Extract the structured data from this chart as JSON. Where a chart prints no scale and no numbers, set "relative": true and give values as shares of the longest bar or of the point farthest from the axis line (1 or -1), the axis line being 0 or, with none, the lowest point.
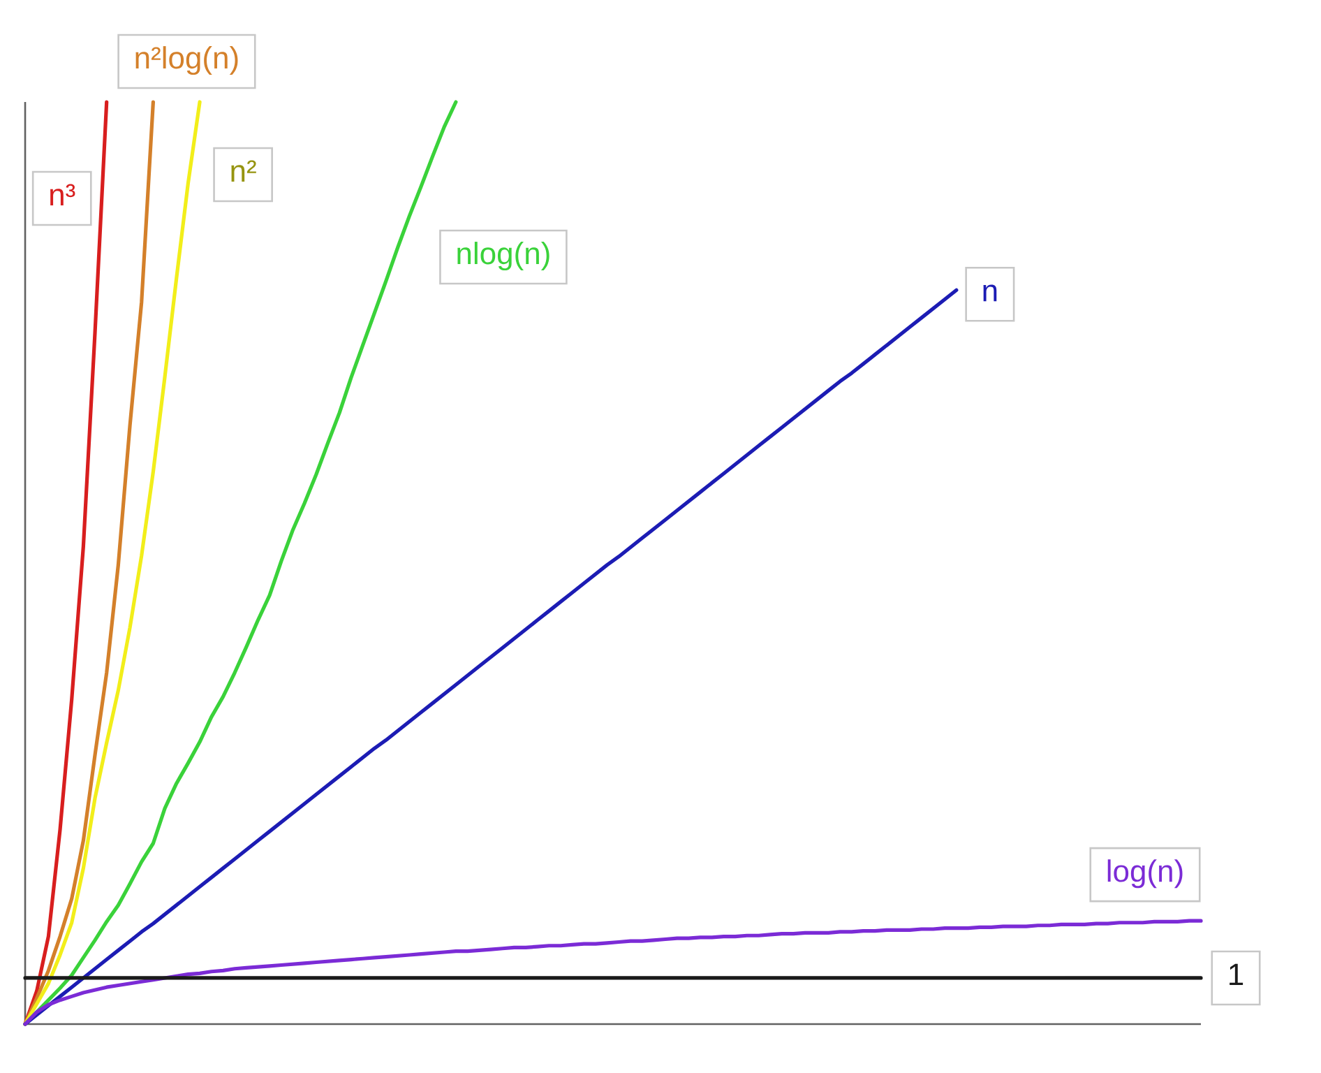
{
  "chart_data": {
    "type": "line",
    "relative": true,
    "line_style": "solid",
    "categories": [
      null,
      null,
      null,
      null,
      null,
      null,
      null,
      null,
      null,
      null,
      null,
      null,
      null,
      null,
      null,
      null,
      null,
      null,
      null,
      null,
      null,
      null,
      null,
      null,
      null,
      null,
      null,
      null,
      null,
      null,
      null,
      null,
      null,
      null,
      null,
      null,
      null,
      null,
      null,
      null,
      null,
      null,
      null,
      null,
      null,
      null,
      null,
      null,
      null,
      null,
      null,
      null,
      null,
      null,
      null,
      null,
      null,
      null,
      null,
      null,
      null,
      null,
      null,
      null,
      null,
      null,
      null,
      null,
      null,
      null,
      null,
      null,
      null,
      null,
      null,
      null,
      null,
      null,
      null,
      null,
      null,
      null,
      null,
      null,
      null,
      null,
      null,
      null,
      null,
      null,
      null,
      null,
      null,
      null,
      null,
      null,
      null,
      null,
      null,
      null,
      null,
      null
    ],
    "series": [
      {
        "name": "n³",
        "color": "#d81e1e",
        "values": [
          0,
          0.036,
          0.095,
          0.211,
          0.352,
          0.518,
          0.75,
          1,
          null,
          null,
          null,
          null,
          null,
          null,
          null,
          null,
          null,
          null,
          null,
          null,
          null,
          null,
          null,
          null,
          null,
          null,
          null,
          null,
          null,
          null,
          null,
          null,
          null,
          null,
          null,
          null,
          null,
          null,
          null,
          null,
          null,
          null,
          null,
          null,
          null,
          null,
          null,
          null,
          null,
          null,
          null,
          null,
          null,
          null,
          null,
          null,
          null,
          null,
          null,
          null,
          null,
          null,
          null,
          null,
          null,
          null,
          null,
          null,
          null,
          null,
          null,
          null,
          null,
          null,
          null,
          null,
          null,
          null,
          null,
          null,
          null,
          null,
          null,
          null,
          null,
          null,
          null,
          null,
          null,
          null,
          null,
          null,
          null,
          null,
          null,
          null,
          null,
          null,
          null,
          null,
          null,
          null
        ]
      },
      {
        "name": "n²log(n)",
        "color": "#d4802a",
        "values": [
          0,
          0.028,
          0.058,
          0.095,
          0.136,
          0.199,
          0.292,
          0.381,
          0.498,
          0.649,
          0.783,
          1,
          null,
          null,
          null,
          null,
          null,
          null,
          null,
          null,
          null,
          null,
          null,
          null,
          null,
          null,
          null,
          null,
          null,
          null,
          null,
          null,
          null,
          null,
          null,
          null,
          null,
          null,
          null,
          null,
          null,
          null,
          null,
          null,
          null,
          null,
          null,
          null,
          null,
          null,
          null,
          null,
          null,
          null,
          null,
          null,
          null,
          null,
          null,
          null,
          null,
          null,
          null,
          null,
          null,
          null,
          null,
          null,
          null,
          null,
          null,
          null,
          null,
          null,
          null,
          null,
          null,
          null,
          null,
          null,
          null,
          null,
          null,
          null,
          null,
          null,
          null,
          null,
          null,
          null,
          null,
          null,
          null,
          null,
          null,
          null,
          null,
          null,
          null,
          null,
          null,
          null
        ]
      },
      {
        "name": "n²",
        "color": "#f2ee1a",
        "values": [
          0,
          0.022,
          0.044,
          0.075,
          0.11,
          0.169,
          0.245,
          0.305,
          0.362,
          0.43,
          0.508,
          0.599,
          0.702,
          0.809,
          0.912,
          1,
          null,
          null,
          null,
          null,
          null,
          null,
          null,
          null,
          null,
          null,
          null,
          null,
          null,
          null,
          null,
          null,
          null,
          null,
          null,
          null,
          null,
          null,
          null,
          null,
          null,
          null,
          null,
          null,
          null,
          null,
          null,
          null,
          null,
          null,
          null,
          null,
          null,
          null,
          null,
          null,
          null,
          null,
          null,
          null,
          null,
          null,
          null,
          null,
          null,
          null,
          null,
          null,
          null,
          null,
          null,
          null,
          null,
          null,
          null,
          null,
          null,
          null,
          null,
          null,
          null,
          null,
          null,
          null,
          null,
          null,
          null,
          null,
          null,
          null,
          null,
          null,
          null,
          null,
          null,
          null,
          null,
          null,
          null,
          null,
          null,
          null
        ]
      },
      {
        "name": "nlog(n)",
        "color": "#3ad23a",
        "values": [
          0,
          0.013,
          0.026,
          0.039,
          0.053,
          0.072,
          0.091,
          0.111,
          0.129,
          0.152,
          0.176,
          0.196,
          0.234,
          0.261,
          0.283,
          0.306,
          0.333,
          0.355,
          0.381,
          0.409,
          0.438,
          0.465,
          0.502,
          0.536,
          0.565,
          0.596,
          0.63,
          0.663,
          0.701,
          0.736,
          0.771,
          0.806,
          0.842,
          0.876,
          0.908,
          0.941,
          0.973,
          1,
          null,
          null,
          null,
          null,
          null,
          null,
          null,
          null,
          null,
          null,
          null,
          null,
          null,
          null,
          null,
          null,
          null,
          null,
          null,
          null,
          null,
          null,
          null,
          null,
          null,
          null,
          null,
          null,
          null,
          null,
          null,
          null,
          null,
          null,
          null,
          null,
          null,
          null,
          null,
          null,
          null,
          null,
          null,
          null,
          null,
          null,
          null,
          null,
          null,
          null,
          null,
          null,
          null,
          null,
          null,
          null,
          null,
          null,
          null,
          null,
          null,
          null,
          null,
          null
        ]
      },
      {
        "name": "n",
        "color": "#1c1cb4",
        "values": [
          0,
          0.01,
          0.02,
          0.03,
          0.04,
          0.05,
          0.06,
          0.07,
          0.08,
          0.09,
          0.1,
          0.109,
          0.119,
          0.129,
          0.139,
          0.149,
          0.159,
          0.169,
          0.179,
          0.189,
          0.199,
          0.209,
          0.219,
          0.229,
          0.239,
          0.249,
          0.259,
          0.269,
          0.279,
          0.289,
          0.299,
          0.308,
          0.318,
          0.328,
          0.338,
          0.348,
          0.358,
          0.368,
          0.378,
          0.388,
          0.398,
          0.408,
          0.418,
          0.428,
          0.438,
          0.448,
          0.458,
          0.468,
          0.478,
          0.488,
          0.498,
          0.507,
          0.517,
          0.527,
          0.537,
          0.547,
          0.557,
          0.567,
          0.577,
          0.587,
          0.597,
          0.607,
          0.617,
          0.627,
          0.637,
          0.647,
          0.657,
          0.667,
          0.677,
          0.687,
          0.697,
          0.706,
          0.716,
          0.726,
          0.736,
          0.746,
          0.756,
          0.766,
          0.776,
          0.786,
          0.796,
          null,
          null,
          null,
          null,
          null,
          null,
          null,
          null,
          null,
          null,
          null,
          null,
          null,
          null,
          null,
          null,
          null,
          null,
          null,
          null,
          null
        ]
      },
      {
        "name": "log(n)",
        "color": "#7b2bd6",
        "values": [
          0,
          0.013,
          0.021,
          0.026,
          0.03,
          0.034,
          0.037,
          0.04,
          0.042,
          0.044,
          0.046,
          0.048,
          0.05,
          0.052,
          0.054,
          0.055,
          0.057,
          0.058,
          0.06,
          0.061,
          0.062,
          0.063,
          0.064,
          0.065,
          0.066,
          0.067,
          0.068,
          0.069,
          0.07,
          0.071,
          0.072,
          0.073,
          0.074,
          0.075,
          0.076,
          0.077,
          0.078,
          0.079,
          0.079,
          0.08,
          0.081,
          0.082,
          0.083,
          0.083,
          0.084,
          0.085,
          0.085,
          0.086,
          0.087,
          0.087,
          0.088,
          0.089,
          0.09,
          0.09,
          0.091,
          0.092,
          0.093,
          0.093,
          0.094,
          0.094,
          0.095,
          0.095,
          0.096,
          0.096,
          0.097,
          0.098,
          0.098,
          0.099,
          0.099,
          0.099,
          0.1,
          0.1,
          0.101,
          0.101,
          0.102,
          0.102,
          0.102,
          0.103,
          0.103,
          0.104,
          0.104,
          0.104,
          0.105,
          0.105,
          0.106,
          0.106,
          0.106,
          0.107,
          0.107,
          0.108,
          0.108,
          0.108,
          0.109,
          0.109,
          0.11,
          0.11,
          0.11,
          0.111,
          0.111,
          0.111,
          0.112,
          0.112
        ]
      },
      {
        "name": "1",
        "color": "#1a1a1a",
        "values": [
          0.05,
          0.05,
          0.05,
          0.05,
          0.05,
          0.05,
          0.05,
          0.05,
          0.05,
          0.05,
          0.05,
          0.05,
          0.05,
          0.05,
          0.05,
          0.05,
          0.05,
          0.05,
          0.05,
          0.05,
          0.05,
          0.05,
          0.05,
          0.05,
          0.05,
          0.05,
          0.05,
          0.05,
          0.05,
          0.05,
          0.05,
          0.05,
          0.05,
          0.05,
          0.05,
          0.05,
          0.05,
          0.05,
          0.05,
          0.05,
          0.05,
          0.05,
          0.05,
          0.05,
          0.05,
          0.05,
          0.05,
          0.05,
          0.05,
          0.05,
          0.05,
          0.05,
          0.05,
          0.05,
          0.05,
          0.05,
          0.05,
          0.05,
          0.05,
          0.05,
          0.05,
          0.05,
          0.05,
          0.05,
          0.05,
          0.05,
          0.05,
          0.05,
          0.05,
          0.05,
          0.05,
          0.05,
          0.05,
          0.05,
          0.05,
          0.05,
          0.05,
          0.05,
          0.05,
          0.05,
          0.05,
          0.05,
          0.05,
          0.05,
          0.05,
          0.05,
          0.05,
          0.05,
          0.05,
          0.05,
          0.05,
          0.05,
          0.05,
          0.05,
          0.05,
          0.05,
          0.05,
          0.05,
          0.05,
          0.05,
          0.05,
          0.05
        ]
      }
    ]
  }
}
